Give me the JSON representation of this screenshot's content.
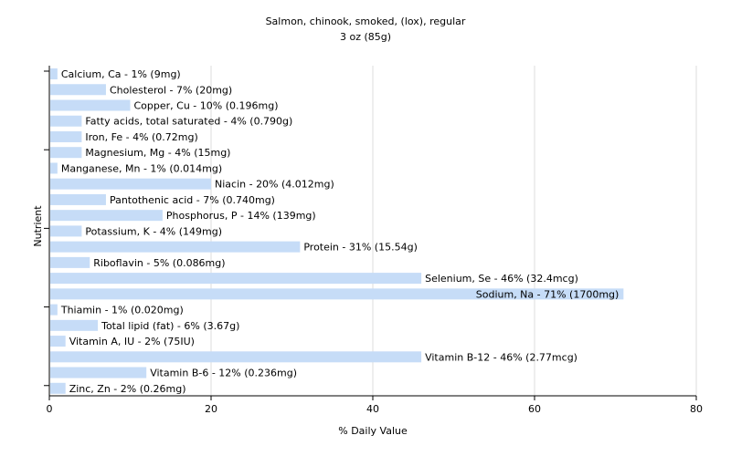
{
  "chart_data": {
    "type": "bar",
    "orientation": "horizontal",
    "title": "Salmon, chinook, smoked, (lox), regular",
    "subtitle": "3 oz (85g)",
    "xlabel": "% Daily Value",
    "ylabel": "Nutrient",
    "xlim": [
      0,
      80
    ],
    "xticks": [
      0,
      20,
      40,
      60,
      80
    ],
    "grid": true,
    "colors": {
      "bar": "#c6dcf7",
      "grid": "#dcdcdc",
      "axis": "#000000"
    },
    "bars": [
      {
        "label": "Calcium, Ca - 1% (9mg)",
        "value": 1
      },
      {
        "label": "Cholesterol - 7% (20mg)",
        "value": 7
      },
      {
        "label": "Copper, Cu - 10% (0.196mg)",
        "value": 10
      },
      {
        "label": "Fatty acids, total saturated - 4% (0.790g)",
        "value": 4
      },
      {
        "label": "Iron, Fe - 4% (0.72mg)",
        "value": 4
      },
      {
        "label": "Magnesium, Mg - 4% (15mg)",
        "value": 4
      },
      {
        "label": "Manganese, Mn - 1% (0.014mg)",
        "value": 1
      },
      {
        "label": "Niacin - 20% (4.012mg)",
        "value": 20
      },
      {
        "label": "Pantothenic acid - 7% (0.740mg)",
        "value": 7
      },
      {
        "label": "Phosphorus, P - 14% (139mg)",
        "value": 14
      },
      {
        "label": "Potassium, K - 4% (149mg)",
        "value": 4
      },
      {
        "label": "Protein - 31% (15.54g)",
        "value": 31
      },
      {
        "label": "Riboflavin - 5% (0.086mg)",
        "value": 5
      },
      {
        "label": "Selenium, Se - 46% (32.4mcg)",
        "value": 46
      },
      {
        "label": "Sodium, Na - 71% (1700mg)",
        "value": 71
      },
      {
        "label": "Thiamin - 1% (0.020mg)",
        "value": 1
      },
      {
        "label": "Total lipid (fat) - 6% (3.67g)",
        "value": 6
      },
      {
        "label": "Vitamin A, IU - 2% (75IU)",
        "value": 2
      },
      {
        "label": "Vitamin B-12 - 46% (2.77mcg)",
        "value": 46
      },
      {
        "label": "Vitamin B-6 - 12% (0.236mg)",
        "value": 12
      },
      {
        "label": "Zinc, Zn - 2% (0.26mg)",
        "value": 2
      }
    ]
  }
}
